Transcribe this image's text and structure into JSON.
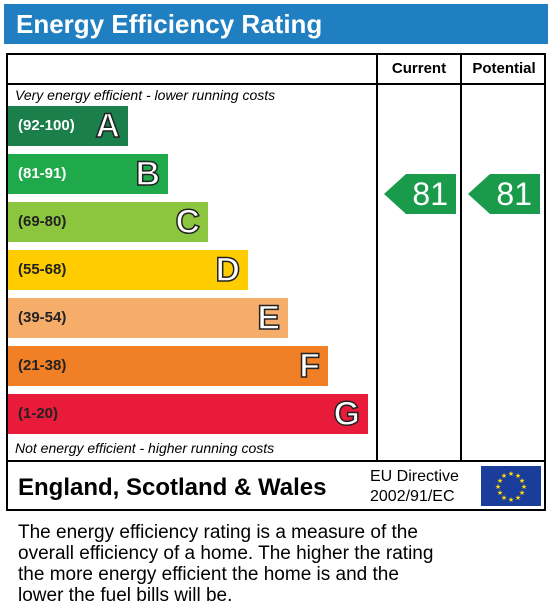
{
  "title": "Energy Efficiency Rating",
  "columns": {
    "current": "Current",
    "potential": "Potential"
  },
  "notes": {
    "top": "Very energy efficient - lower running costs",
    "bottom": "Not energy efficient - higher running costs"
  },
  "bands": [
    {
      "range": "(92-100)",
      "letter": "A",
      "color": "#1a7f4a"
    },
    {
      "range": "(81-91)",
      "letter": "B",
      "color": "#1fa94b"
    },
    {
      "range": "(69-80)",
      "letter": "C",
      "color": "#8cc63f"
    },
    {
      "range": "(55-68)",
      "letter": "D",
      "color": "#ffcc00"
    },
    {
      "range": "(39-54)",
      "letter": "E",
      "color": "#f7ad6a"
    },
    {
      "range": "(21-38)",
      "letter": "F",
      "color": "#f07f25"
    },
    {
      "range": "(1-20)",
      "letter": "G",
      "color": "#e81c3a"
    }
  ],
  "ratings": {
    "current": "81",
    "potential": "81",
    "band_color": "#1a9a4b"
  },
  "footer": {
    "region": "England, Scotland & Wales",
    "directive_line1": "EU Directive",
    "directive_line2": "2002/91/EC",
    "flag": "eu-flag-icon"
  },
  "description": [
    "The energy efficiency rating is a measure of the",
    "overall efficiency of a home. The higher the rating",
    "the more energy efficient the home is and the",
    "lower the fuel bills will be."
  ]
}
